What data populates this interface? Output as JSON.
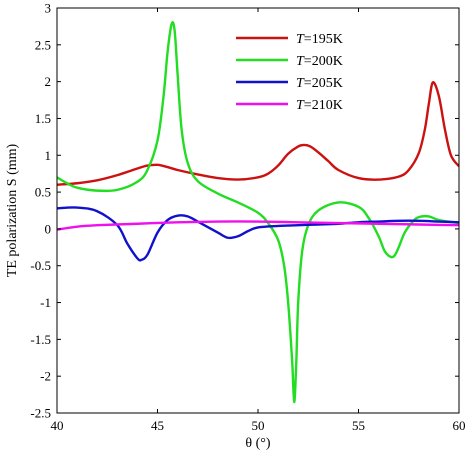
{
  "chart_data": {
    "type": "line",
    "xlabel": "θ (°)",
    "ylabel": "TE polarization S (mm)",
    "xlim": [
      40,
      60
    ],
    "ylim": [
      -2.5,
      3
    ],
    "x_ticks": [
      40,
      45,
      50,
      55,
      60
    ],
    "x_tick_labels": [
      "40",
      "45",
      "50",
      "55",
      "60"
    ],
    "y_ticks": [
      -2.5,
      -2,
      -1.5,
      -1,
      -0.5,
      0,
      0.5,
      1,
      1.5,
      2,
      2.5,
      3
    ],
    "y_tick_labels": [
      "-2.5",
      "-2",
      "-1.5",
      "-1",
      "-0.5",
      "0",
      "0.5",
      "1",
      "1.5",
      "2",
      "2.5",
      "3"
    ],
    "grid": false,
    "legend_position": "top-right",
    "series": [
      {
        "name": "T=195K",
        "legend_italic": "T",
        "legend_rest": "=195K",
        "color": "#cc1111",
        "x": [
          40,
          41,
          42,
          43,
          44,
          44.5,
          45,
          45.5,
          46,
          47,
          48,
          49,
          50,
          50.5,
          51,
          51.5,
          52,
          52.3,
          52.6,
          53,
          53.5,
          54,
          55,
          56,
          57,
          57.5,
          58,
          58.3,
          58.5,
          58.7,
          59,
          59.3,
          59.6,
          60
        ],
        "y": [
          0.6,
          0.62,
          0.66,
          0.73,
          0.82,
          0.86,
          0.87,
          0.84,
          0.8,
          0.74,
          0.69,
          0.67,
          0.7,
          0.75,
          0.86,
          1.02,
          1.12,
          1.14,
          1.12,
          1.04,
          0.92,
          0.8,
          0.69,
          0.67,
          0.71,
          0.8,
          1.03,
          1.35,
          1.7,
          1.99,
          1.8,
          1.35,
          1.0,
          0.85
        ]
      },
      {
        "name": "T=200K",
        "legend_italic": "T",
        "legend_rest": "=200K",
        "color": "#22dd22",
        "x": [
          40,
          40.5,
          41,
          42,
          43,
          44,
          44.5,
          45,
          45.3,
          45.5,
          45.7,
          45.85,
          46,
          46.2,
          46.5,
          47,
          48,
          49,
          50,
          50.5,
          51,
          51.3,
          51.5,
          51.7,
          51.8,
          51.9,
          52,
          52.2,
          52.5,
          53,
          54,
          55,
          55.5,
          56,
          56.3,
          56.6,
          56.8,
          57,
          57.3,
          57.7,
          58,
          58.5,
          59,
          60
        ],
        "y": [
          0.7,
          0.62,
          0.56,
          0.52,
          0.53,
          0.64,
          0.8,
          1.2,
          1.8,
          2.4,
          2.78,
          2.7,
          2.1,
          1.35,
          0.9,
          0.65,
          0.48,
          0.36,
          0.22,
          0.08,
          -0.15,
          -0.5,
          -1.0,
          -1.8,
          -2.35,
          -1.85,
          -1.0,
          -0.3,
          0.05,
          0.25,
          0.36,
          0.3,
          0.15,
          -0.1,
          -0.3,
          -0.38,
          -0.36,
          -0.25,
          -0.05,
          0.1,
          0.16,
          0.17,
          0.12,
          0.08
        ]
      },
      {
        "name": "T=205K",
        "legend_italic": "T",
        "legend_rest": "=205K",
        "color": "#1111cc",
        "x": [
          40,
          41,
          42,
          43,
          43.5,
          44,
          44.2,
          44.5,
          45,
          45.5,
          46,
          46.5,
          47,
          48,
          48.5,
          49,
          49.5,
          50,
          51,
          52,
          53,
          54,
          55,
          56,
          57,
          58,
          59,
          60
        ],
        "y": [
          0.28,
          0.29,
          0.24,
          0.05,
          -0.2,
          -0.4,
          -0.42,
          -0.35,
          -0.05,
          0.12,
          0.18,
          0.17,
          0.1,
          -0.05,
          -0.12,
          -0.1,
          -0.03,
          0.02,
          0.04,
          0.05,
          0.06,
          0.07,
          0.09,
          0.1,
          0.11,
          0.11,
          0.1,
          0.09
        ]
      },
      {
        "name": "T=210K",
        "legend_italic": "T",
        "legend_rest": "=210K",
        "color": "#ee11ee",
        "x": [
          40,
          41,
          42,
          44,
          46,
          48,
          50,
          52,
          54,
          56,
          58,
          60
        ],
        "y": [
          -0.01,
          0.03,
          0.05,
          0.07,
          0.09,
          0.1,
          0.1,
          0.09,
          0.08,
          0.07,
          0.06,
          0.05
        ]
      }
    ]
  }
}
